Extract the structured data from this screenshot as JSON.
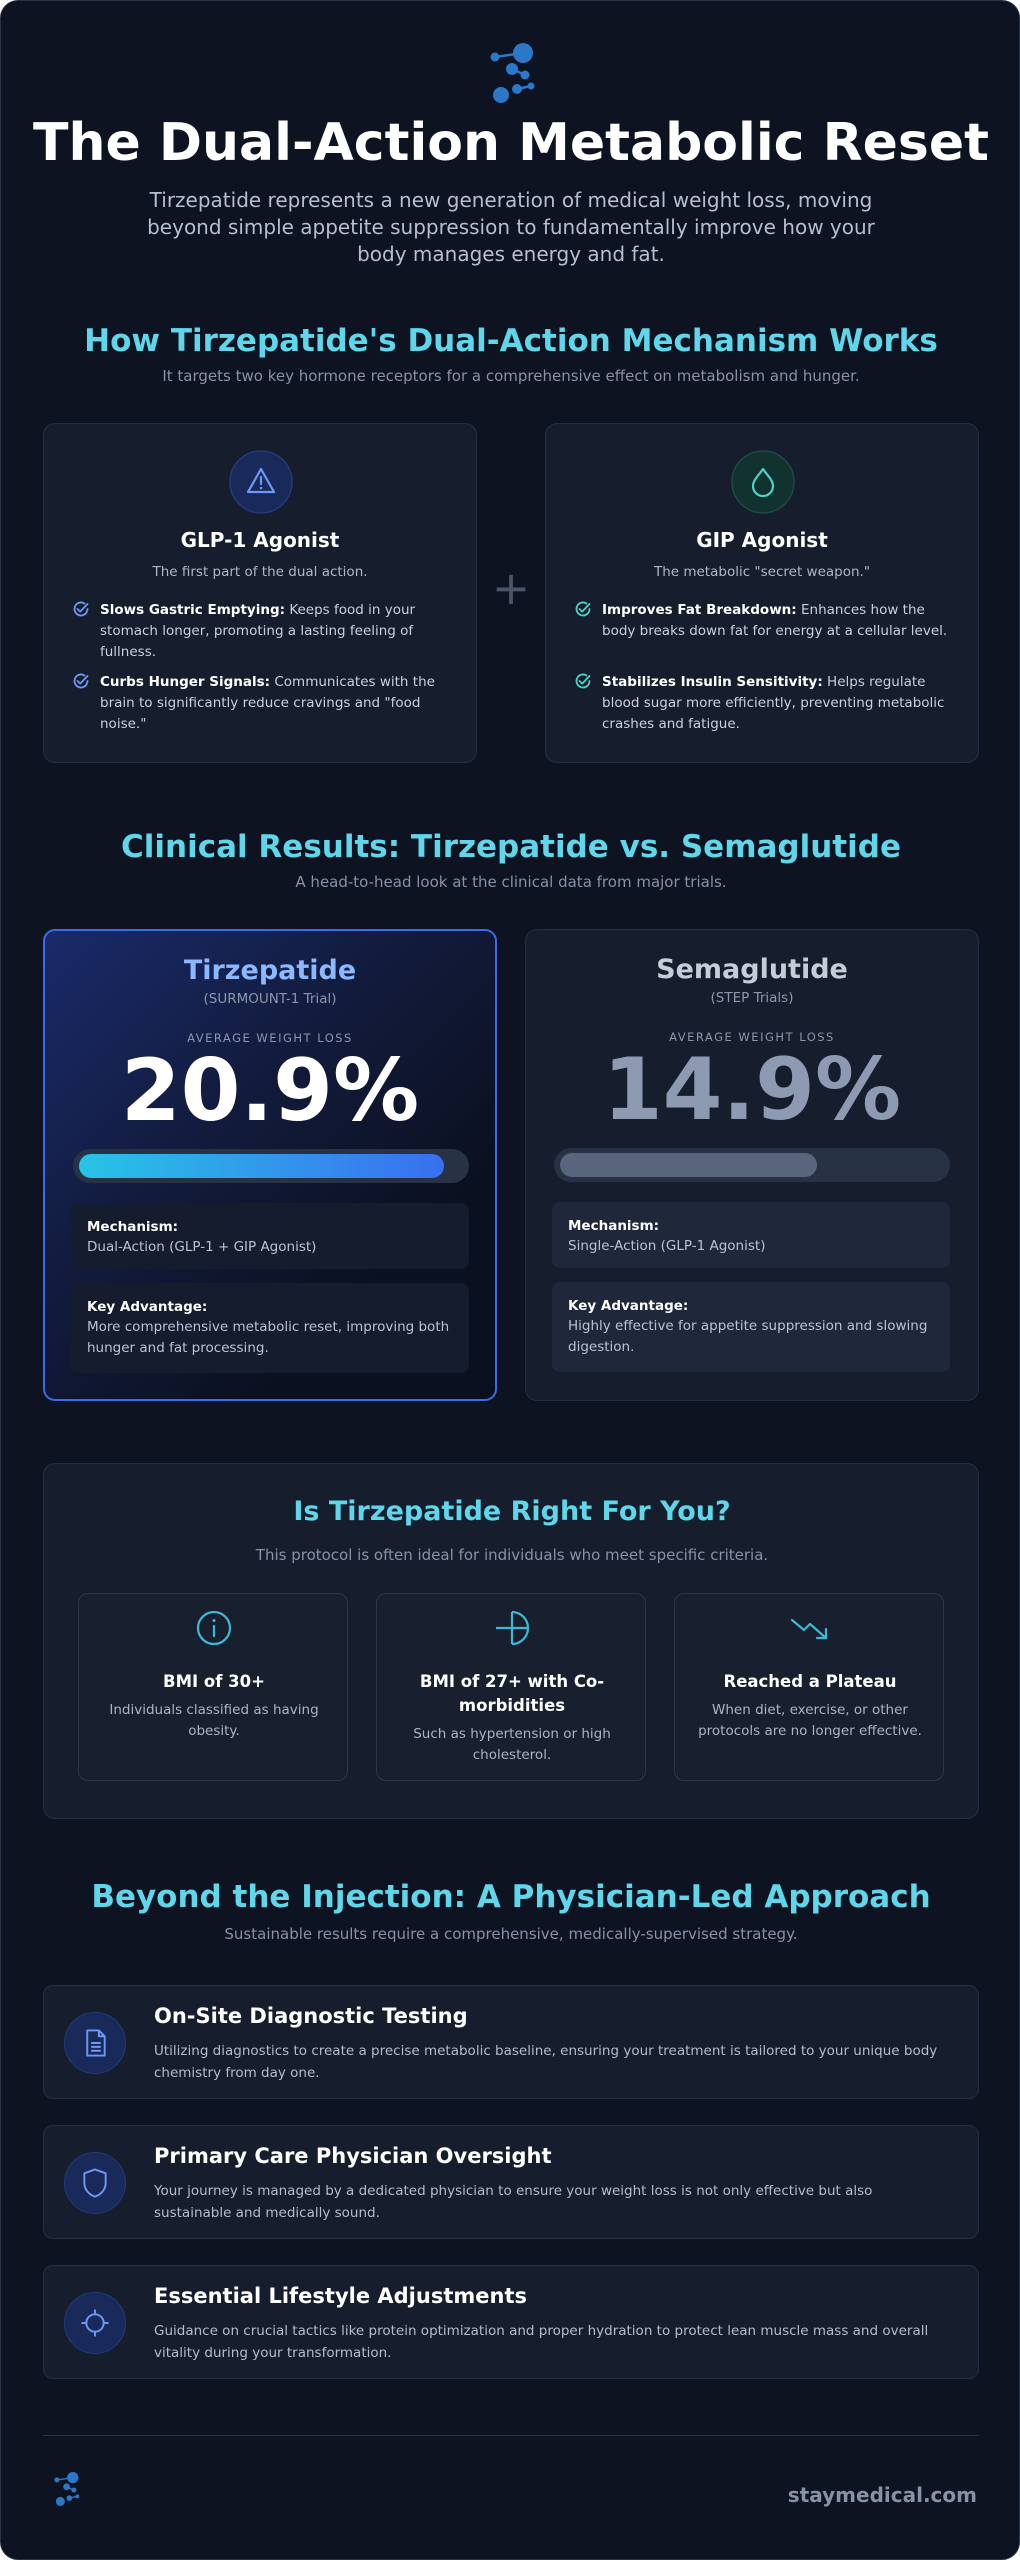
{
  "hero": {
    "logo_icon": "molecule-dots-logo-icon",
    "title": "The Dual-Action Metabolic Reset",
    "subtitle": "Tirzepatide represents a new generation of medical weight loss, moving beyond simple appetite suppression to fundamentally improve how your body manages energy and fat."
  },
  "mechanism": {
    "title": "How Tirzepatide's Dual-Action Mechanism Works",
    "subtitle": "It targets two key hormone receptors for a comprehensive effect on metabolism and hunger.",
    "plus": "+",
    "cards": [
      {
        "icon": "warning-triangle-icon",
        "title": "GLP-1 Agonist",
        "subtitle": "The first part of the dual action.",
        "points": [
          {
            "label": "Slows Gastric Emptying:",
            "text": "Keeps food in your stomach longer, promoting a lasting feeling of fullness."
          },
          {
            "label": "Curbs Hunger Signals:",
            "text": "Communicates with the brain to significantly reduce cravings and \"food noise.\""
          }
        ]
      },
      {
        "icon": "droplet-icon",
        "title": "GIP Agonist",
        "subtitle": "The metabolic \"secret weapon.\"",
        "points": [
          {
            "label": "Improves Fat Breakdown:",
            "text": "Enhances how the body breaks down fat for energy at a cellular level."
          },
          {
            "label": "Stabilizes Insulin Sensitivity:",
            "text": "Helps regulate blood sugar more efficiently, preventing metabolic crashes and fatigue."
          }
        ]
      }
    ]
  },
  "results": {
    "title": "Clinical Results: Tirzepatide vs. Semaglutide",
    "subtitle": "A head-to-head look at the clinical data from major trials.",
    "drugs": [
      {
        "name": "Tirzepatide",
        "trial": "(SURMOUNT-1 Trial)",
        "caption": "AVERAGE WEIGHT LOSS",
        "value": "20.9%",
        "bar_fraction": 0.95,
        "mechanism_label": "Mechanism:",
        "mechanism": "Dual-Action (GLP-1 + GIP Agonist)",
        "advantage_label": "Key Advantage:",
        "advantage": "More comprehensive metabolic reset, improving both hunger and fat processing.",
        "accent": "#8bb8ff"
      },
      {
        "name": "Semaglutide",
        "trial": "(STEP Trials)",
        "caption": "AVERAGE WEIGHT LOSS",
        "value": "14.9%",
        "bar_fraction": 0.67,
        "mechanism_label": "Mechanism:",
        "mechanism": "Single-Action (GLP-1 Agonist)",
        "advantage_label": "Key Advantage:",
        "advantage": "Highly effective for appetite suppression and slowing digestion.",
        "accent": "#c7cdd8"
      }
    ]
  },
  "criteria": {
    "title": "Is Tirzepatide Right For You?",
    "subtitle": "This protocol is often ideal for individuals who meet specific criteria.",
    "items": [
      {
        "icon": "info-circle-icon",
        "title": "BMI of 30+",
        "desc": "Individuals classified as having obesity."
      },
      {
        "icon": "split-circle-icon",
        "title": "BMI of 27+ with Co-morbidities",
        "desc": "Such as hypertension or high cholesterol."
      },
      {
        "icon": "trending-down-icon",
        "title": "Reached a Plateau",
        "desc": "When diet, exercise, or other protocols are no longer effective."
      }
    ]
  },
  "approach": {
    "title": "Beyond the Injection: A Physician-Led Approach",
    "subtitle": "Sustainable results require a comprehensive, medically-supervised strategy.",
    "items": [
      {
        "icon": "document-icon",
        "title": "On-Site Diagnostic Testing",
        "desc": "Utilizing diagnostics to create a precise metabolic baseline, ensuring your treatment is tailored to your unique body chemistry from day one."
      },
      {
        "icon": "shield-icon",
        "title": "Primary Care Physician Oversight",
        "desc": "Your journey is managed by a dedicated physician to ensure your weight loss is not only effective but also sustainable and medically sound."
      },
      {
        "icon": "crosshair-icon",
        "title": "Essential Lifestyle Adjustments",
        "desc": "Guidance on crucial tactics like protein optimization and proper hydration to protect lean muscle mass and overall vitality during your transformation."
      }
    ]
  },
  "footer": {
    "logo_icon": "molecule-dots-logo-icon",
    "site": "staymedical.com"
  },
  "colors": {
    "background": "#0d1320",
    "accent_cyan": "#5fd6ea",
    "accent_blue": "#3b6ff5",
    "check_teal": "#4fd1c5"
  }
}
